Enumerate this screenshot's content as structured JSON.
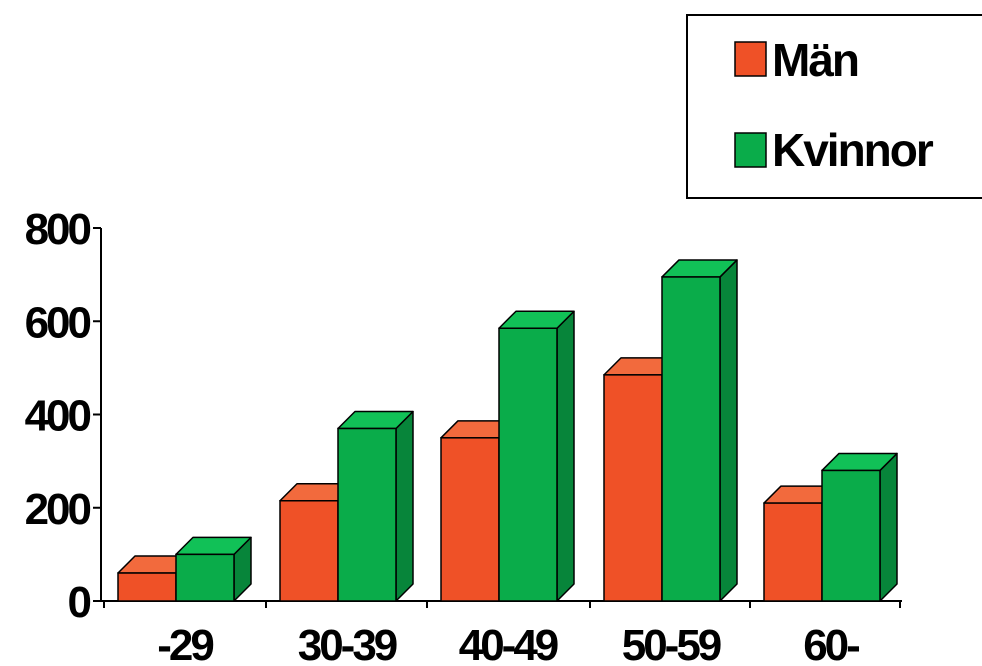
{
  "chart_data": {
    "type": "bar",
    "categories": [
      "-29",
      "30-39",
      "40-49",
      "50-59",
      "60-"
    ],
    "series": [
      {
        "name": "Män",
        "values": [
          60,
          215,
          350,
          485,
          210
        ],
        "color": "#ef5127"
      },
      {
        "name": "Kvinnor",
        "values": [
          100,
          370,
          585,
          695,
          280
        ],
        "color": "#0aac4a"
      }
    ],
    "y_ticks": [
      "0",
      "200",
      "400",
      "600",
      "800"
    ],
    "ylim": [
      0,
      800
    ],
    "legend_position": "top-right",
    "style": "3d-bar",
    "grid": false
  }
}
